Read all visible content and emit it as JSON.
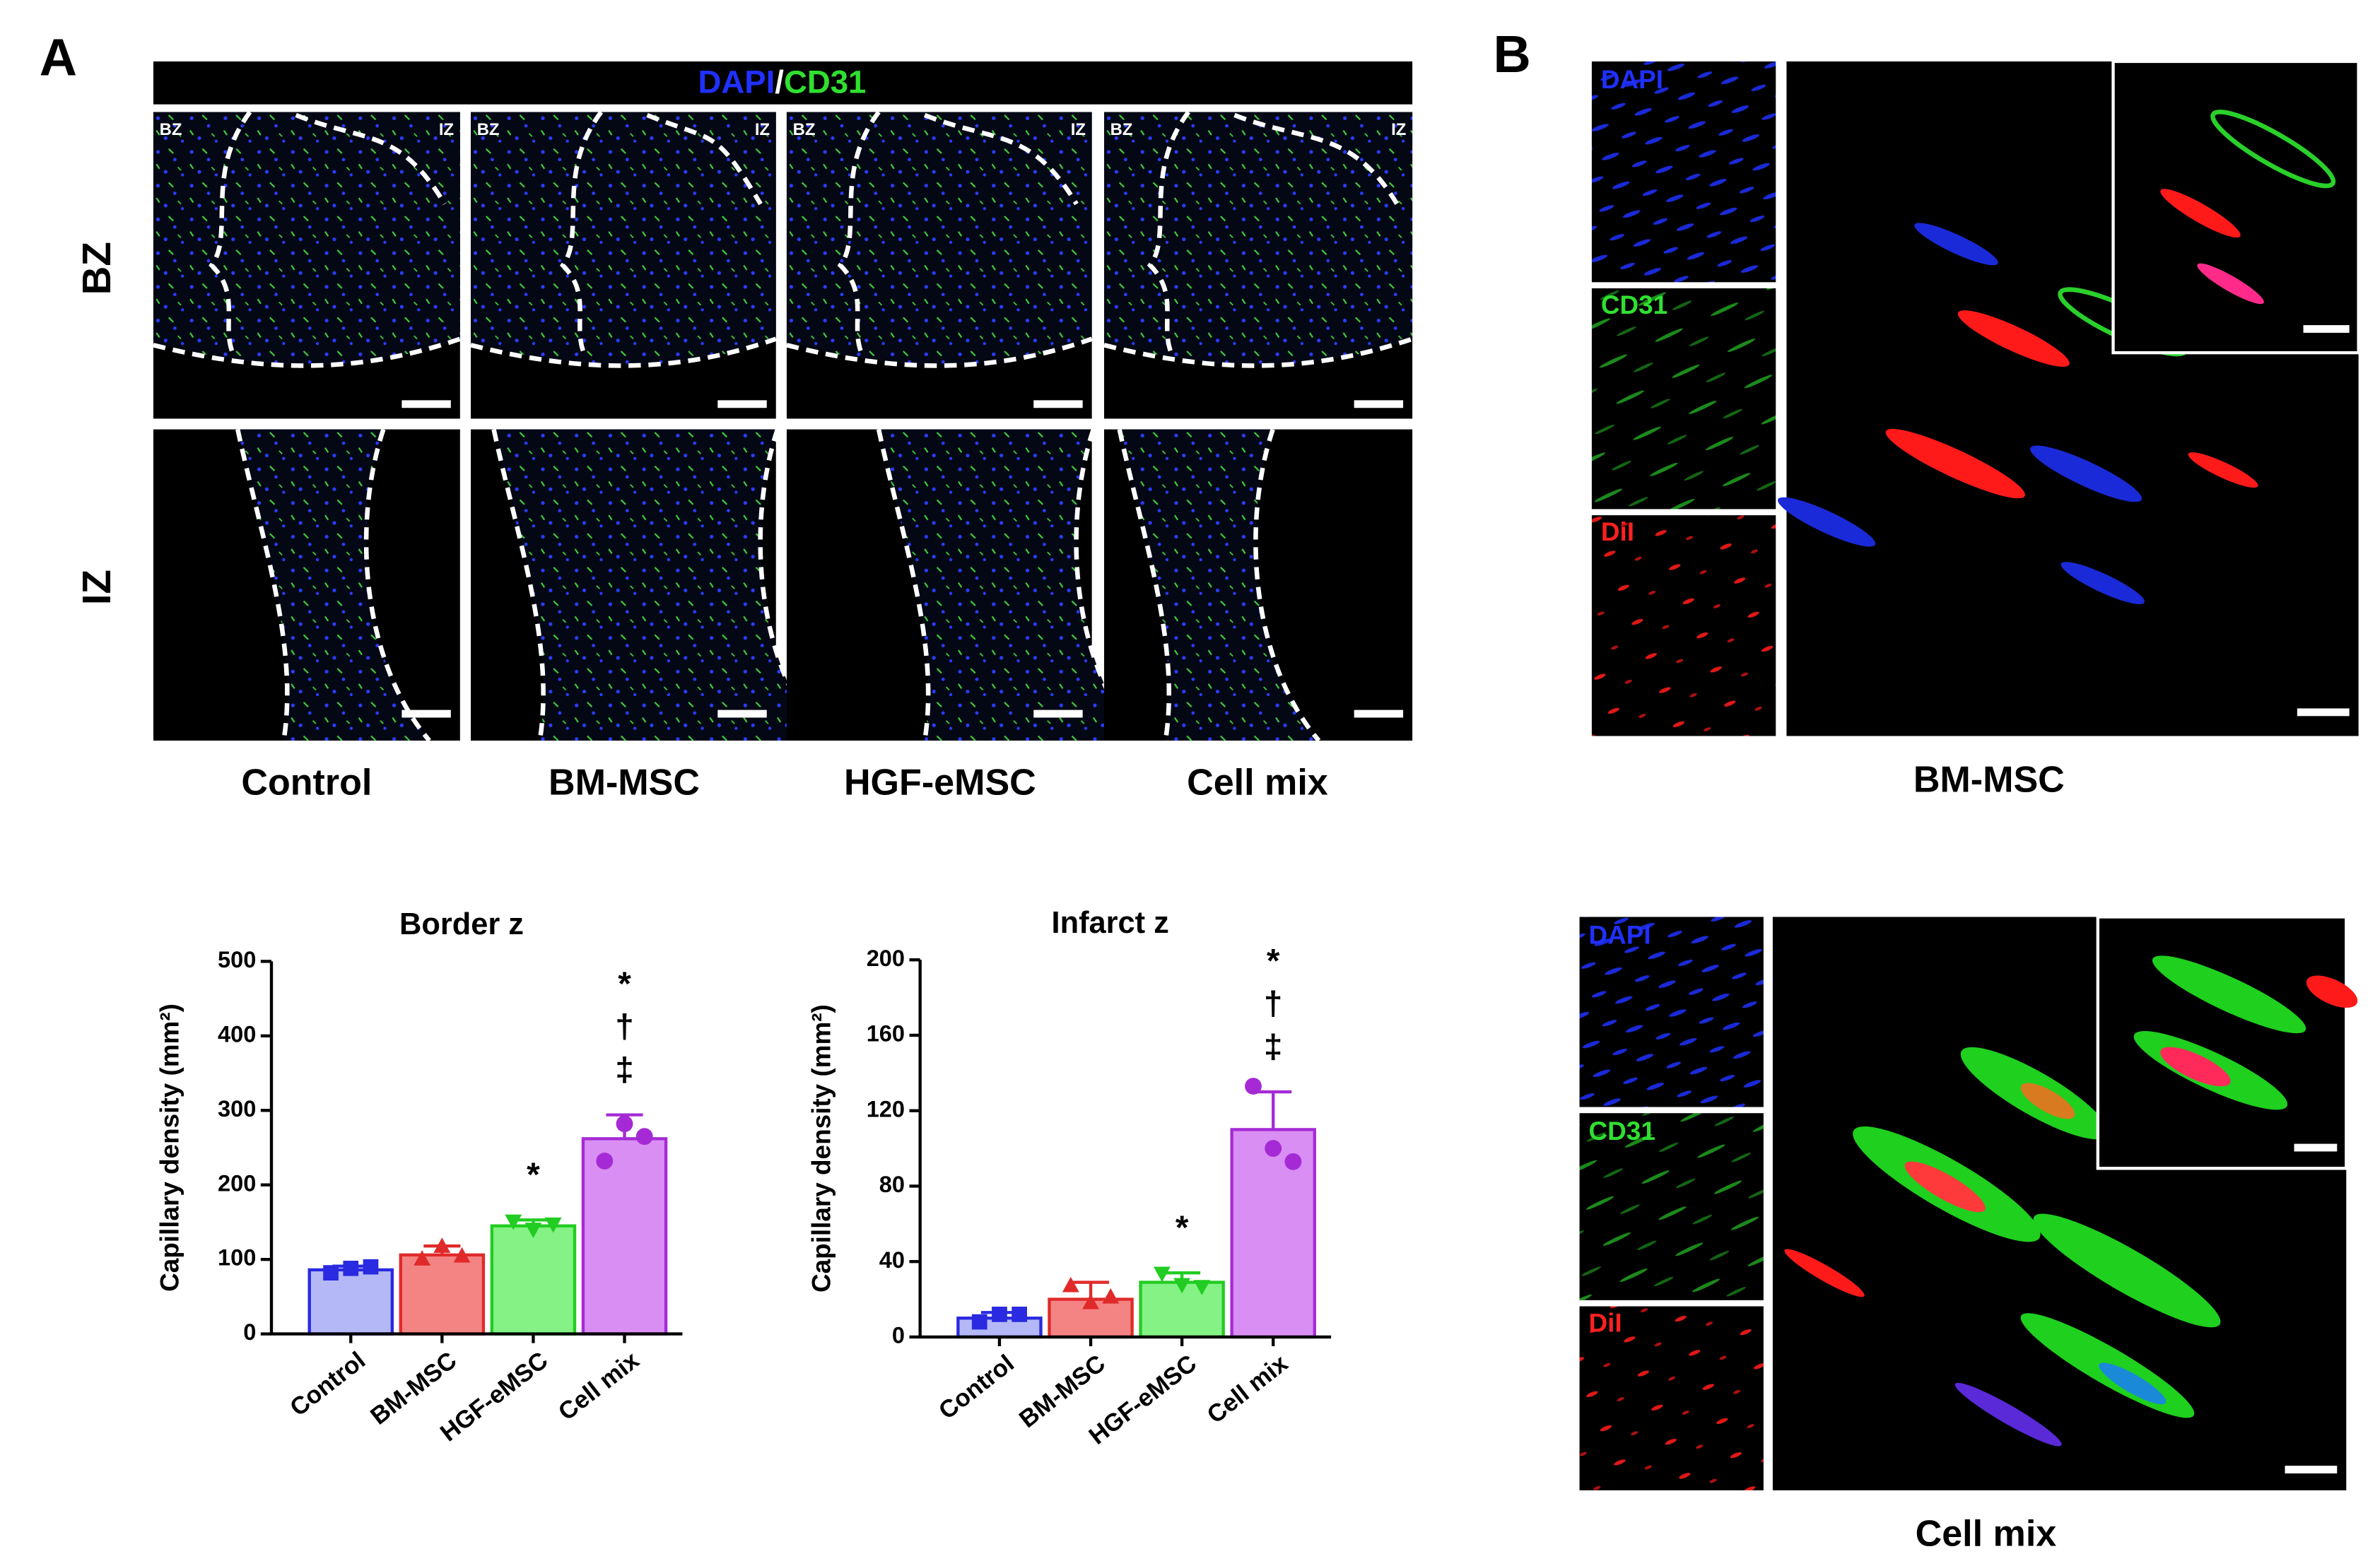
{
  "panel_labels": [
    "A",
    "B"
  ],
  "panel_a": {
    "stain": [
      "DAPI",
      "/",
      "CD31"
    ],
    "rows": [
      "BZ",
      "IZ"
    ],
    "corner_labels": [
      "BZ",
      "IZ"
    ],
    "columns": [
      "Control",
      "BM-MSC",
      "HGF-eMSC",
      "Cell mix"
    ]
  },
  "panel_b": {
    "channels": [
      "DAPI",
      "CD31",
      "DiI"
    ],
    "groups": [
      "BM-MSC",
      "Cell mix"
    ]
  },
  "chart_data": [
    {
      "type": "bar",
      "title": "Border z",
      "y_label": "Capillary density (mm²)",
      "categories": [
        "Control",
        "BM-MSC",
        "HGF-eMSC",
        "Cell mix"
      ],
      "values": [
        86,
        106,
        145,
        262
      ],
      "errors": [
        5,
        12,
        8,
        32
      ],
      "points": [
        [
          82,
          88,
          90
        ],
        [
          100,
          117,
          104
        ],
        [
          152,
          141,
          148
        ],
        [
          232,
          282,
          265
        ]
      ],
      "markers": [
        "square",
        "triangle",
        "triangle-down",
        "circle"
      ],
      "colors": [
        "#2a2ae0",
        "#e02a2a",
        "#22cc22",
        "#a52ad6"
      ],
      "fills": [
        "#b4b8f6",
        "#f48484",
        "#84f284",
        "#d88ef2"
      ],
      "annotations": [
        [],
        [],
        [
          "*"
        ],
        [
          "*",
          "†",
          "‡"
        ]
      ],
      "ylim": [
        0,
        500
      ],
      "yticks": [
        0,
        100,
        200,
        300,
        400,
        500
      ]
    },
    {
      "type": "bar",
      "title": "Infarct z",
      "y_label": "Capillary density (mm²)",
      "categories": [
        "Control",
        "BM-MSC",
        "HGF-eMSC",
        "Cell mix"
      ],
      "values": [
        10,
        20,
        29,
        110
      ],
      "errors": [
        3,
        9,
        5,
        20
      ],
      "points": [
        [
          8,
          12,
          12
        ],
        [
          27,
          18,
          21
        ],
        [
          34,
          28,
          27
        ],
        [
          133,
          100,
          93
        ]
      ],
      "markers": [
        "square",
        "triangle",
        "triangle-down",
        "circle"
      ],
      "colors": [
        "#2a2ae0",
        "#e02a2a",
        "#22cc22",
        "#a52ad6"
      ],
      "fills": [
        "#b4b8f6",
        "#f48484",
        "#84f284",
        "#d88ef2"
      ],
      "annotations": [
        [],
        [],
        [
          "*"
        ],
        [
          "*",
          "†",
          "‡"
        ]
      ],
      "ylim": [
        0,
        200
      ],
      "yticks": [
        0,
        40,
        80,
        120,
        160,
        200
      ]
    }
  ]
}
